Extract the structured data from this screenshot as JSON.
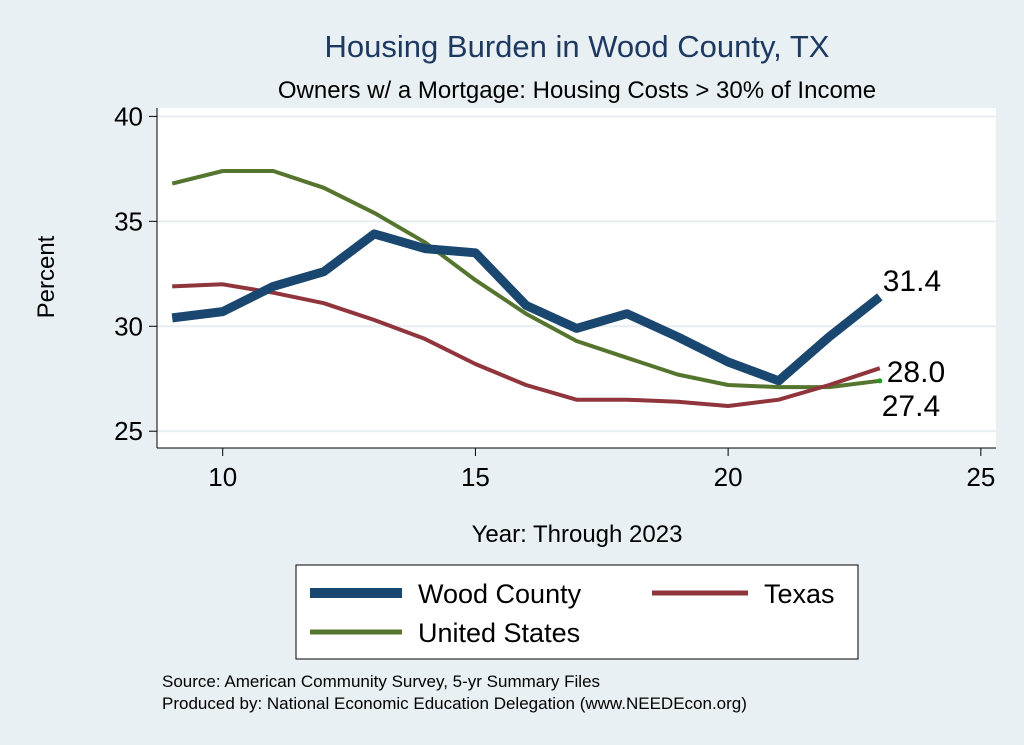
{
  "chart_data": {
    "type": "line",
    "title": "Housing Burden in Wood County, TX",
    "subtitle": "Owners w/ a Mortgage: Housing Costs > 30% of Income",
    "xlabel": "Year: Through 2023",
    "ylabel": "Percent",
    "xlim": [
      8.7,
      25.3
    ],
    "ylim": [
      24.2,
      40.4
    ],
    "xticks": [
      10,
      15,
      20,
      25
    ],
    "yticks": [
      25,
      30,
      35,
      40
    ],
    "x": [
      9,
      10,
      11,
      12,
      13,
      14,
      15,
      16,
      17,
      18,
      19,
      20,
      21,
      22,
      23
    ],
    "series": [
      {
        "name": "Wood County",
        "color": "#1a476f",
        "values": [
          30.4,
          30.7,
          31.9,
          32.6,
          34.4,
          33.7,
          33.5,
          31.0,
          29.9,
          30.6,
          29.5,
          28.3,
          27.4,
          29.5,
          31.4
        ],
        "end_label": "31.4"
      },
      {
        "name": "Texas",
        "color": "#90353b",
        "values": [
          31.9,
          32.0,
          31.6,
          31.1,
          30.3,
          29.4,
          28.2,
          27.2,
          26.5,
          26.5,
          26.4,
          26.2,
          26.5,
          27.2,
          28.0
        ],
        "end_label": "28.0"
      },
      {
        "name": "United States",
        "color": "#55752f",
        "values": [
          36.8,
          37.4,
          37.4,
          36.6,
          35.4,
          34.0,
          32.2,
          30.6,
          29.3,
          28.5,
          27.7,
          27.2,
          27.1,
          27.1,
          27.4
        ],
        "end_label": "27.4"
      }
    ],
    "legend": {
      "placement": "bottom",
      "entries": [
        "Wood County",
        "Texas",
        "United States"
      ]
    },
    "notes": [
      "Source: American Community Survey, 5-yr Summary Files",
      "Produced by: National Economic Education Delegation (www.NEEDEcon.org)"
    ]
  }
}
